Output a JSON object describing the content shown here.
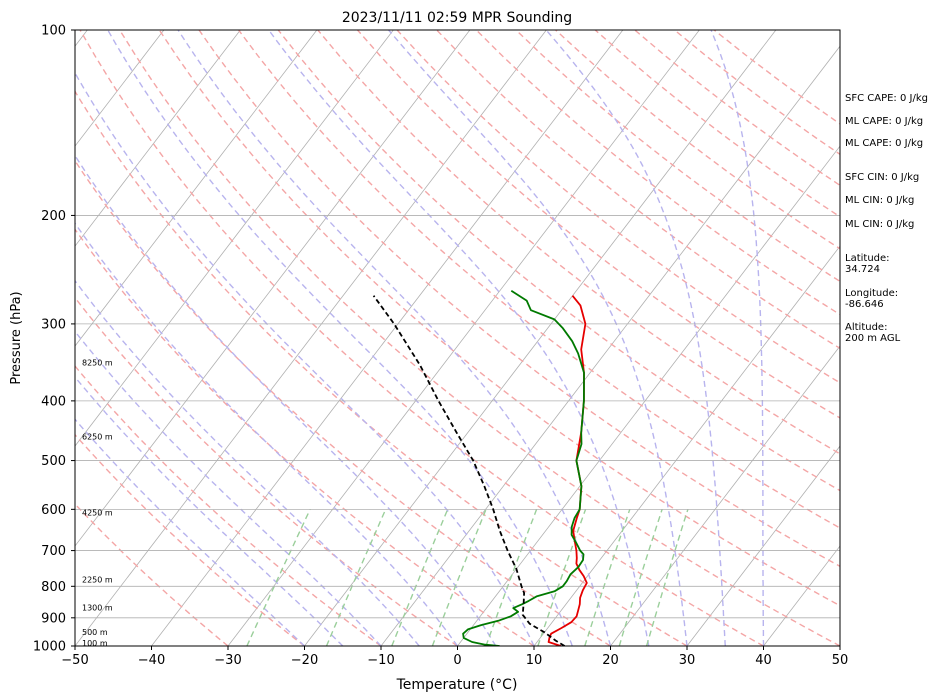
{
  "chart_data": {
    "type": "line",
    "title": "2023/11/11 02:59 MPR Sounding",
    "xlabel": "Temperature (°C)",
    "ylabel": "Pressure (hPa)",
    "xlim": [
      -50,
      50
    ],
    "ylim": [
      1000,
      100
    ],
    "y_scale": "log",
    "grid": true,
    "x_ticks": [
      -50,
      -40,
      -30,
      -20,
      -10,
      0,
      10,
      20,
      30,
      40,
      50
    ],
    "y_ticks": [
      1000,
      900,
      800,
      700,
      600,
      500,
      400,
      300,
      200,
      100
    ],
    "height_labels": [
      {
        "text": "100 m",
        "p": 990
      },
      {
        "text": "500 m",
        "p": 950
      },
      {
        "text": "1300 m",
        "p": 868
      },
      {
        "text": "2250 m",
        "p": 782
      },
      {
        "text": "4250 m",
        "p": 608
      },
      {
        "text": "6250 m",
        "p": 458
      },
      {
        "text": "8250 m",
        "p": 347
      }
    ],
    "series": [
      {
        "key": "temperature",
        "color": "#e60000",
        "dashed": false,
        "points": [
          [
            1000,
            13.5
          ],
          [
            985,
            11.5
          ],
          [
            970,
            11.2
          ],
          [
            955,
            11.0
          ],
          [
            935,
            11.8
          ],
          [
            915,
            12.5
          ],
          [
            895,
            12.6
          ],
          [
            875,
            12.2
          ],
          [
            855,
            11.8
          ],
          [
            835,
            11.2
          ],
          [
            812,
            10.8
          ],
          [
            790,
            10.6
          ],
          [
            770,
            9.5
          ],
          [
            752,
            8.3
          ],
          [
            735,
            7.3
          ],
          [
            720,
            6.8
          ],
          [
            700,
            6.0
          ],
          [
            675,
            4.8
          ],
          [
            650,
            3.6
          ],
          [
            620,
            2.8
          ],
          [
            600,
            2.3
          ],
          [
            550,
            0.2
          ],
          [
            500,
            -3.0
          ],
          [
            450,
            -5.2
          ],
          [
            400,
            -8.0
          ],
          [
            360,
            -10.8
          ],
          [
            330,
            -13.5
          ],
          [
            300,
            -15.5
          ],
          [
            280,
            -18.0
          ],
          [
            270,
            -20.0
          ]
        ]
      },
      {
        "key": "dewpoint",
        "color": "#007a00",
        "dashed": false,
        "points": [
          [
            1000,
            5.5
          ],
          [
            995,
            3.5
          ],
          [
            985,
            1.5
          ],
          [
            970,
            0.0
          ],
          [
            955,
            -0.5
          ],
          [
            940,
            -0.3
          ],
          [
            925,
            1.0
          ],
          [
            910,
            2.8
          ],
          [
            895,
            4.0
          ],
          [
            880,
            4.5
          ],
          [
            868,
            3.5
          ],
          [
            855,
            4.3
          ],
          [
            845,
            4.8
          ],
          [
            830,
            5.4
          ],
          [
            815,
            7.2
          ],
          [
            800,
            7.8
          ],
          [
            785,
            7.8
          ],
          [
            765,
            7.6
          ],
          [
            745,
            7.9
          ],
          [
            725,
            7.8
          ],
          [
            710,
            7.3
          ],
          [
            700,
            6.5
          ],
          [
            680,
            5.2
          ],
          [
            660,
            3.8
          ],
          [
            640,
            3.0
          ],
          [
            620,
            2.5
          ],
          [
            600,
            2.3
          ],
          [
            550,
            0.2
          ],
          [
            500,
            -3.0
          ],
          [
            470,
            -4.0
          ],
          [
            450,
            -5.2
          ],
          [
            400,
            -8.0
          ],
          [
            360,
            -10.8
          ],
          [
            335,
            -13.5
          ],
          [
            320,
            -15.5
          ],
          [
            305,
            -18.0
          ],
          [
            295,
            -20.0
          ],
          [
            285,
            -24.0
          ],
          [
            275,
            -25.5
          ],
          [
            265,
            -28.5
          ]
        ]
      },
      {
        "key": "parcel",
        "color": "#000000",
        "dashed": true,
        "points": [
          [
            1000,
            14.0
          ],
          [
            980,
            12.3
          ],
          [
            950,
            10.0
          ],
          [
            920,
            7.2
          ],
          [
            890,
            5.4
          ],
          [
            850,
            4.3
          ],
          [
            820,
            3.4
          ],
          [
            800,
            2.4
          ],
          [
            750,
            0.0
          ],
          [
            700,
            -3.0
          ],
          [
            650,
            -6.0
          ],
          [
            600,
            -9.0
          ],
          [
            550,
            -12.5
          ],
          [
            500,
            -16.5
          ],
          [
            450,
            -21.5
          ],
          [
            400,
            -27.0
          ],
          [
            350,
            -33.0
          ],
          [
            300,
            -40.5
          ],
          [
            270,
            -46.0
          ]
        ]
      }
    ]
  },
  "stats": [
    {
      "text": "SFC CAPE: 0 J/kg"
    },
    {
      "text": "ML CAPE: 0 J/kg"
    },
    {
      "text": "ML CAPE: 0 J/kg"
    },
    {
      "text": "SFC CIN: 0 J/kg"
    },
    {
      "text": "ML CIN: 0 J/kg"
    },
    {
      "text": "ML CIN: 0 J/kg"
    },
    {
      "text": "Latitude:\n34.724"
    },
    {
      "text": "Longitude:\n-86.646"
    },
    {
      "text": "Altitude:\n200 m AGL"
    }
  ]
}
